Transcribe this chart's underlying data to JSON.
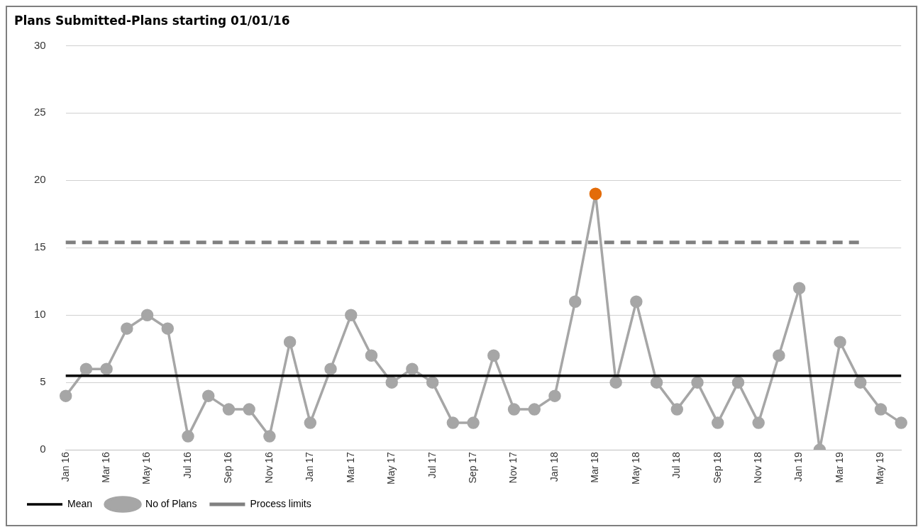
{
  "chart_data": {
    "type": "line",
    "title": "Plans Submitted-Plans starting 01/01/16",
    "categories": [
      "Jan 16",
      null,
      "Mar 16",
      null,
      "May 16",
      null,
      "Jul 16",
      null,
      "Sep 16",
      null,
      "Nov 16",
      null,
      "Jan 17",
      null,
      "Mar 17",
      null,
      "May 17",
      null,
      "Jul 17",
      null,
      "Sep 17",
      null,
      "Nov 17",
      null,
      "Jan 18",
      null,
      "Mar 18",
      null,
      "May 18",
      null,
      "Jul 18",
      null,
      "Sep 18",
      null,
      "Nov 18",
      null,
      "Jan 19",
      null,
      "Mar 19",
      null,
      "May 19",
      null
    ],
    "series": [
      {
        "name": "Mean",
        "color": "#000000",
        "marker": "none",
        "line_style": "solid",
        "values": [
          5.5,
          5.5,
          5.5,
          5.5,
          5.5,
          5.5,
          5.5,
          5.5,
          5.5,
          5.5,
          5.5,
          5.5,
          5.5,
          5.5,
          5.5,
          5.5,
          5.5,
          5.5,
          5.5,
          5.5,
          5.5,
          5.5,
          5.5,
          5.5,
          5.5,
          5.5,
          5.5,
          5.5,
          5.5,
          5.5,
          5.5,
          5.5,
          5.5,
          5.5,
          5.5,
          5.5,
          5.5,
          5.5,
          5.5,
          5.5,
          5.5,
          5.5
        ]
      },
      {
        "name": "No of Plans",
        "color": "#a6a6a6",
        "marker": "circle",
        "line_style": "solid",
        "values": [
          4,
          6,
          6,
          9,
          10,
          9,
          1,
          4,
          3,
          3,
          1,
          8,
          2,
          6,
          10,
          7,
          5,
          6,
          5,
          2,
          2,
          7,
          3,
          3,
          4,
          11,
          19,
          5,
          11,
          5,
          3,
          5,
          2,
          5,
          2,
          7,
          12,
          0,
          8,
          5,
          3,
          2
        ],
        "colors": [
          "#a6a6a6",
          "#a6a6a6",
          "#a6a6a6",
          "#a6a6a6",
          "#a6a6a6",
          "#a6a6a6",
          "#a6a6a6",
          "#a6a6a6",
          "#a6a6a6",
          "#a6a6a6",
          "#a6a6a6",
          "#a6a6a6",
          "#a6a6a6",
          "#a6a6a6",
          "#a6a6a6",
          "#a6a6a6",
          "#a6a6a6",
          "#a6a6a6",
          "#a6a6a6",
          "#a6a6a6",
          "#a6a6a6",
          "#a6a6a6",
          "#a6a6a6",
          "#a6a6a6",
          "#a6a6a6",
          "#a6a6a6",
          "#e36c09",
          "#a6a6a6",
          "#a6a6a6",
          "#a6a6a6",
          "#a6a6a6",
          "#a6a6a6",
          "#a6a6a6",
          "#a6a6a6",
          "#a6a6a6",
          "#a6a6a6",
          "#a6a6a6",
          "#a6a6a6",
          "#a6a6a6",
          "#a6a6a6",
          "#a6a6a6",
          "#a6a6a6"
        ]
      },
      {
        "name": "Process limits",
        "color": "#808080",
        "marker": "none",
        "line_style": "dashed",
        "values": [
          15.4,
          15.4,
          15.4,
          15.4,
          15.4,
          15.4,
          15.4,
          15.4,
          15.4,
          15.4,
          15.4,
          15.4,
          15.4,
          15.4,
          15.4,
          15.4,
          15.4,
          15.4,
          15.4,
          15.4,
          15.4,
          15.4,
          15.4,
          15.4,
          15.4,
          15.4,
          15.4,
          15.4,
          15.4,
          15.4,
          15.4,
          15.4,
          15.4,
          15.4,
          15.4,
          15.4,
          15.4,
          15.4,
          15.4,
          15.4,
          null,
          null
        ]
      }
    ],
    "ylim": [
      0,
      30
    ],
    "yticks": [
      0,
      5,
      10,
      15,
      20,
      25,
      30
    ],
    "grid": "y",
    "legend": "bottom left"
  }
}
